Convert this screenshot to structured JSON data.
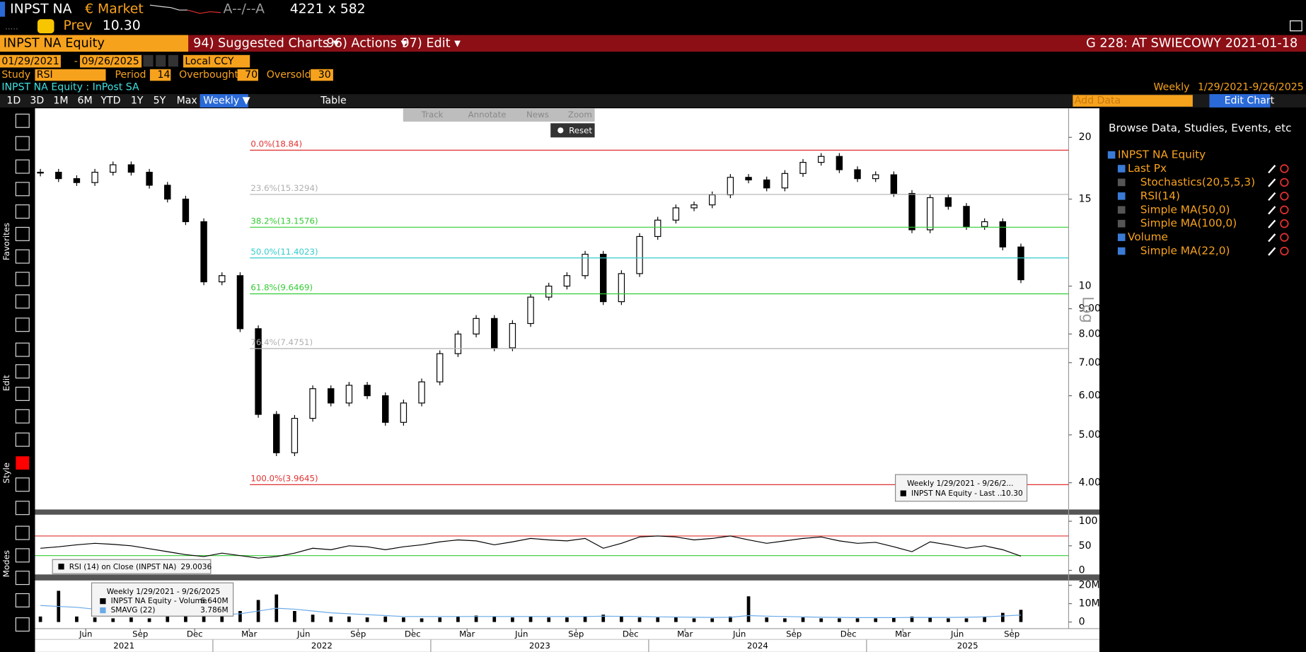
{
  "header": {
    "ticker": "INPST NA",
    "market": "€ Market",
    "bid_ask": "A--/--A",
    "size": "4221 x 582",
    "prev_label": "Prev",
    "prev": "10.30"
  },
  "menu": {
    "security": "INPST NA Equity",
    "items": [
      "94) Suggested Charts ▾",
      "96) Actions ▾",
      "97) Edit ▾"
    ],
    "function": "G 228: AT SWIECOWY 2021-01-18"
  },
  "settings": {
    "start": "01/29/2021",
    "end": "09/26/2025",
    "currency": "Local CCY",
    "study_label": "Study",
    "study": "RSI",
    "period_label": "Period",
    "period": 14,
    "overbought_label": "Overbought",
    "overbought": 70,
    "overbought_color": "#e03030",
    "oversold_label": "Oversold",
    "oversold": 30,
    "oversold_color": "#33cc33"
  },
  "security_line": "INPST NA Equity : InPost SA",
  "frequency": "Weekly",
  "range": "1/29/2021-9/26/2025",
  "periods": [
    "1D",
    "3D",
    "1M",
    "6M",
    "YTD",
    "1Y",
    "5Y",
    "Max"
  ],
  "active_period": "Weekly ▼",
  "table_button": "Table",
  "add_data": "Add Data",
  "edit_chart": "Edit Chart",
  "chart_tools": [
    "Track",
    "Annotate",
    "News",
    "Zoom"
  ],
  "reset": "Reset",
  "side_labels": [
    "Favorites",
    "Edit",
    "Style",
    "Modes"
  ],
  "browse": {
    "title": "Browse Data, Studies, Events, etc",
    "items": [
      {
        "label": "INPST NA Equity",
        "level": 0,
        "checked": true
      },
      {
        "label": "Last Px",
        "level": 1,
        "checked": true
      },
      {
        "label": "Stochastics(20,5,5,3)",
        "level": 2,
        "checked": false
      },
      {
        "label": "RSI(14)",
        "level": 2,
        "checked": true
      },
      {
        "label": "Simple MA(50,0)",
        "level": 2,
        "checked": false
      },
      {
        "label": "Simple MA(100,0)",
        "level": 2,
        "checked": false
      },
      {
        "label": "Volume",
        "level": 1,
        "checked": true
      },
      {
        "label": "Simple MA(22,0)",
        "level": 2,
        "checked": true
      }
    ]
  },
  "chart_data": [
    {
      "type": "candlestick",
      "log": true,
      "color": "#000000",
      "scale_label": "Log",
      "x": [
        "2021-03",
        "2021-04",
        "2021-05",
        "2021-06",
        "2021-07",
        "2021-08",
        "2021-09",
        "2021-10",
        "2021-11",
        "2021-12",
        "2022-01",
        "2022-02",
        "2022-03",
        "2022-04",
        "2022-05",
        "2022-06",
        "2022-07",
        "2022-08",
        "2022-09",
        "2022-10",
        "2022-11",
        "2022-12",
        "2023-01",
        "2023-02",
        "2023-03",
        "2023-04",
        "2023-05",
        "2023-06",
        "2023-07",
        "2023-08",
        "2023-09",
        "2023-10",
        "2023-11",
        "2023-12",
        "2024-01",
        "2024-02",
        "2024-03",
        "2024-04",
        "2024-05",
        "2024-06",
        "2024-07",
        "2024-08",
        "2024-09",
        "2024-10",
        "2024-11",
        "2024-12",
        "2025-01",
        "2025-02",
        "2025-03",
        "2025-04",
        "2025-05",
        "2025-06",
        "2025-07",
        "2025-08",
        "2025-09"
      ],
      "values": [
        17,
        16.5,
        16.2,
        17,
        17.6,
        17,
        16,
        15,
        13.5,
        10.2,
        10.5,
        8.2,
        5.5,
        4.6,
        5.4,
        6.2,
        5.8,
        6.3,
        6.0,
        5.3,
        5.8,
        6.4,
        7.3,
        8.0,
        8.6,
        7.5,
        8.4,
        9.5,
        10.0,
        10.5,
        11.6,
        9.3,
        10.6,
        12.6,
        13.6,
        14.4,
        14.6,
        15.3,
        16.6,
        16.4,
        15.8,
        16.9,
        17.8,
        18.3,
        17.2,
        16.5,
        16.8,
        15.4,
        13.0,
        15.1,
        14.5,
        13.2,
        13.5,
        12.0,
        10.3
      ],
      "ylim": [
        3.53,
        22.9
      ],
      "yticks": [
        20,
        15,
        10,
        {
          "value": 9,
          "label": "9.00"
        },
        {
          "value": 8,
          "label": "8.00"
        },
        {
          "value": 7,
          "label": "7.00"
        },
        {
          "value": 6,
          "label": "6.00"
        },
        {
          "value": 5,
          "label": "5.00"
        },
        {
          "value": 4,
          "label": "4.00"
        }
      ],
      "xticks": [
        {
          "value": "2021-06",
          "label": "Jun"
        },
        {
          "value": "2021-09",
          "label": "Sep"
        },
        {
          "value": "2021-12",
          "label": "Dec"
        },
        {
          "value": "2022-03",
          "label": "Mar"
        },
        {
          "value": "2022-06",
          "label": "Jun"
        },
        {
          "value": "2022-09",
          "label": "Sep"
        },
        {
          "value": "2022-12",
          "label": "Dec"
        },
        {
          "value": "2023-03",
          "label": "Mar"
        },
        {
          "value": "2023-06",
          "label": "Jun"
        },
        {
          "value": "2023-09",
          "label": "Sep"
        },
        {
          "value": "2023-12",
          "label": "Dec"
        },
        {
          "value": "2024-03",
          "label": "Mar"
        },
        {
          "value": "2024-06",
          "label": "Jun"
        },
        {
          "value": "2024-09",
          "label": "Sep"
        },
        {
          "value": "2024-12",
          "label": "Dec"
        },
        {
          "value": "2025-03",
          "label": "Mar"
        },
        {
          "value": "2025-06",
          "label": "Jun"
        },
        {
          "value": "2025-09",
          "label": "Sep"
        }
      ],
      "year_ticks": [
        2021,
        2022,
        2023,
        2024,
        2025
      ],
      "fib_levels": [
        {
          "label": "0.0%(18.84)",
          "value": 18.84,
          "color": "#e03030"
        },
        {
          "label": "23.6%(15.3294)",
          "value": 15.3294,
          "color": "#b0b0b0"
        },
        {
          "label": "38.2%(13.1576)",
          "value": 13.1576,
          "color": "#33cc33"
        },
        {
          "label": "50.0%(11.4023)",
          "value": 11.4023,
          "color": "#33cccc"
        },
        {
          "label": "61.8%(9.6469)",
          "value": 9.6469,
          "color": "#33cc33"
        },
        {
          "label": "76.4%(7.4751)",
          "value": 7.4751,
          "color": "#b0b0b0"
        },
        {
          "label": "100.0%(3.9645)",
          "value": 3.9645,
          "color": "#e03030"
        }
      ],
      "legend": {
        "title": "Weekly 1/29/2021 - 9/26/2...",
        "name": "INPST NA Equity - Last ...",
        "value_label": "10.30"
      }
    },
    {
      "type": "line",
      "name": "RSI (14)  on Close (INPST NA)",
      "color": "#000000",
      "value_label": "29.0036",
      "values": [
        45,
        48,
        52,
        55,
        53,
        50,
        44,
        38,
        32,
        28,
        35,
        30,
        25,
        28,
        35,
        45,
        42,
        50,
        48,
        42,
        48,
        52,
        58,
        62,
        60,
        52,
        58,
        65,
        62,
        60,
        65,
        45,
        55,
        68,
        70,
        68,
        62,
        65,
        70,
        62,
        55,
        60,
        65,
        68,
        60,
        55,
        57,
        48,
        38,
        58,
        52,
        45,
        50,
        42,
        29.0036
      ],
      "ylim": [
        -8.5,
        113.6
      ],
      "yticks": [
        0,
        50,
        100
      ]
    },
    {
      "type": "bar",
      "title": "Weekly 1/29/2021 - 9/26/2025",
      "series": [
        {
          "name": "INPST NA Equity - Volume",
          "color": "#000000",
          "value_label": "6.640M",
          "values": [
            3,
            17,
            3,
            2.5,
            2,
            2.5,
            2,
            3,
            4,
            5,
            4,
            6,
            12,
            15,
            6,
            4,
            3,
            3,
            2.5,
            3,
            2.5,
            2,
            2.5,
            3,
            3.5,
            3,
            2.5,
            3,
            2.5,
            2.5,
            3,
            4,
            3,
            2.5,
            2.5,
            2.5,
            2,
            2,
            3,
            14,
            2.5,
            2,
            2.5,
            2,
            2,
            2,
            2,
            2.5,
            3,
            2.5,
            2,
            2,
            3,
            5,
            6.64
          ]
        },
        {
          "name": "SMAVG (22)",
          "color": "#6aaae8",
          "value_label": "3.786M",
          "values": [
            9,
            8.5,
            8,
            7,
            6,
            5,
            4.5,
            4,
            4,
            4,
            4,
            4.5,
            6,
            7.5,
            7,
            6,
            5,
            4.5,
            4,
            3.5,
            3,
            3,
            3,
            3,
            3,
            3,
            3,
            3,
            3,
            3,
            3,
            3.2,
            3.1,
            3,
            2.8,
            2.7,
            2.6,
            2.5,
            2.6,
            3.5,
            3.2,
            3,
            2.8,
            2.6,
            2.5,
            2.4,
            2.4,
            2.4,
            2.5,
            2.5,
            2.5,
            2.6,
            2.8,
            3.3,
            3.786
          ]
        }
      ],
      "ylim": [
        -3.6,
        22.7
      ],
      "yticks": [
        0,
        {
          "value": 10,
          "label": "10M"
        },
        {
          "value": 20,
          "label": "20M"
        }
      ]
    }
  ]
}
